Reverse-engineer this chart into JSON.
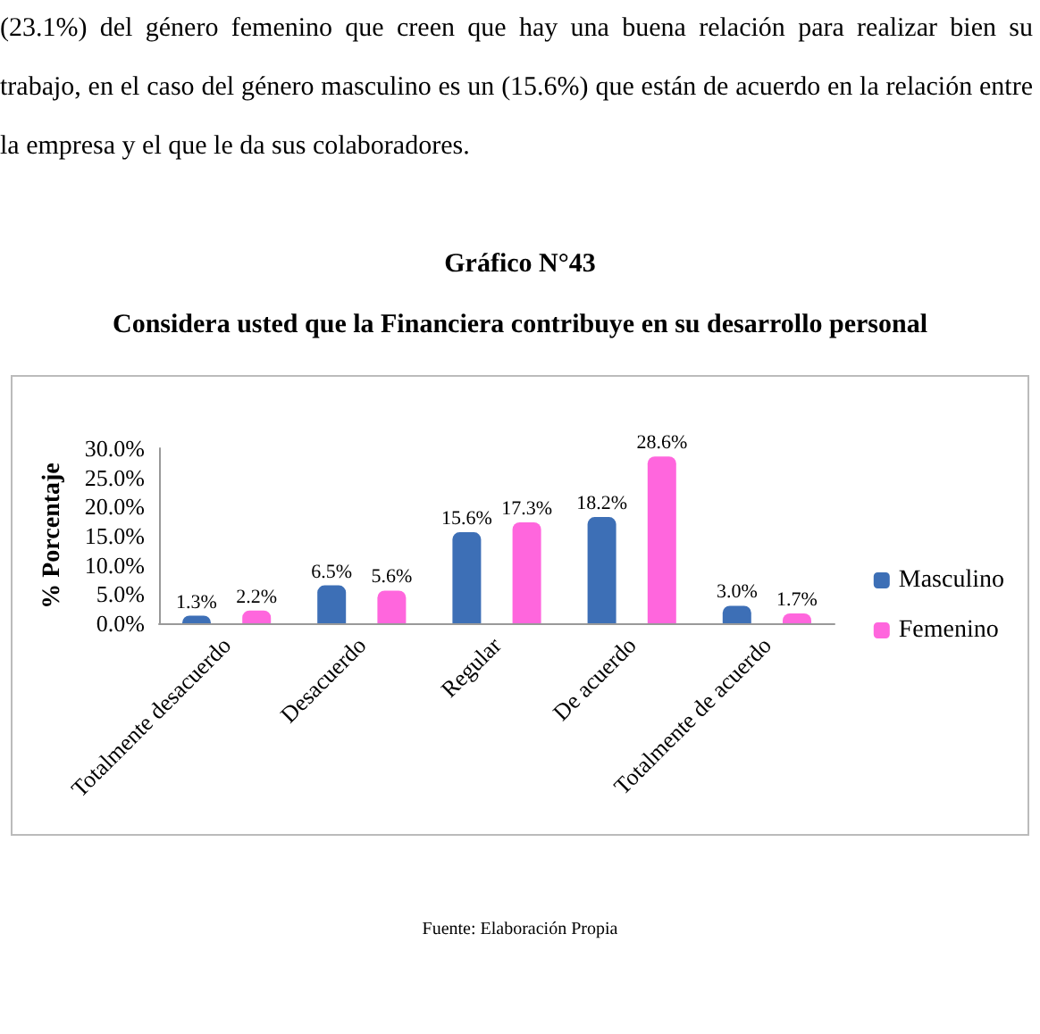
{
  "chart_data": {
    "type": "bar",
    "title": "Gráfico N°43",
    "subtitle": "Considera usted que la Financiera contribuye en su desarrollo personal",
    "ylabel": "% Porcentaje",
    "annotations": [
      "(23.1%) del género femenino que creen que hay una buena relación para realizar bien su trabajo, en el caso del género masculino es un (15.6%) que están de acuerdo en la relación entre la empresa y el que le da sus colaboradores.",
      "Fuente: Elaboración Propia"
    ],
    "categories": [
      "Totalmente desacuerdo",
      "Desacuerdo",
      "Regular",
      "De acuerdo",
      "Totalmente de acuerdo"
    ],
    "series": [
      {
        "name": "Masculino",
        "color": "#3d6fb6",
        "values": [
          1.3,
          6.5,
          15.6,
          18.2,
          3.0
        ],
        "value_labels": [
          "1.3%",
          "6.5%",
          "15.6%",
          "18.2%",
          "3.0%"
        ]
      },
      {
        "name": "Femenino",
        "color": "#ff66dd",
        "values": [
          2.2,
          5.6,
          17.3,
          28.6,
          1.7
        ],
        "value_labels": [
          "2.2%",
          "5.6%",
          "17.3%",
          "28.6%",
          "1.7%"
        ]
      }
    ],
    "ylim": [
      0,
      30
    ],
    "yticks": [
      {
        "value": 0,
        "label": "0.0%"
      },
      {
        "value": 5,
        "label": "5.0%"
      },
      {
        "value": 10,
        "label": "10.0%"
      },
      {
        "value": 15,
        "label": "15.0%"
      },
      {
        "value": 20,
        "label": "20.0%"
      },
      {
        "value": 25,
        "label": "25.0%"
      },
      {
        "value": 30,
        "label": "30.0%"
      }
    ],
    "grid": false,
    "legend": "right"
  }
}
